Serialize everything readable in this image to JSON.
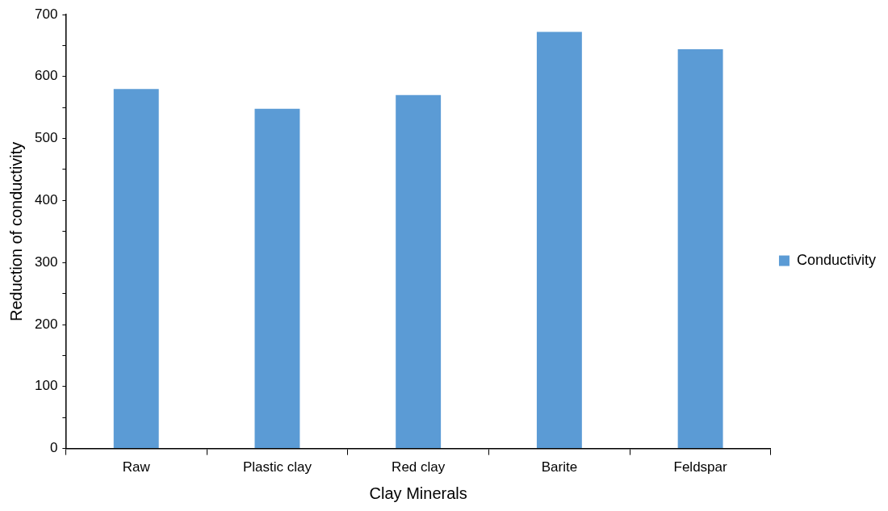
{
  "chart_data": {
    "type": "bar",
    "xlabel": "Clay Minerals",
    "ylabel": "Reduction of conductivity",
    "categories": [
      "Raw",
      "Plastic clay",
      "Red clay",
      "Barite",
      "Feldspar"
    ],
    "series": [
      {
        "name": "Conductivity",
        "color": "#5b9bd5",
        "values": [
          580,
          548,
          570,
          672,
          644
        ]
      }
    ],
    "ylim": [
      0,
      700
    ],
    "yticks": [
      0,
      {
        "value": 50,
        "label": null
      },
      100,
      {
        "value": 150,
        "label": null
      },
      200,
      {
        "value": 250,
        "label": null
      },
      300,
      {
        "value": 350,
        "label": null
      },
      400,
      {
        "value": 450,
        "label": null
      },
      500,
      {
        "value": 550,
        "label": null
      },
      600,
      {
        "value": 650,
        "label": null
      },
      700
    ],
    "grid": false,
    "legend": "right"
  }
}
